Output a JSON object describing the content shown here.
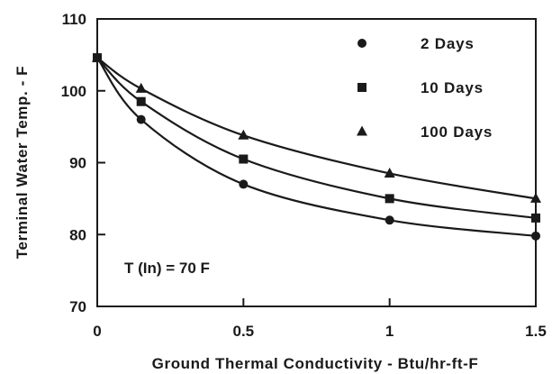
{
  "chart_data": {
    "type": "line",
    "xlabel": "Ground Thermal Conductivity - Btu/hr-ft-F",
    "ylabel": "Terminal Water Temp. - F",
    "xlim": [
      0,
      1.5
    ],
    "ylim": [
      70,
      110
    ],
    "x_ticks": [
      0,
      0.5,
      1,
      1.5
    ],
    "x_tick_labels": [
      "0",
      "0.5",
      "1",
      "1.5"
    ],
    "y_ticks": [
      70,
      80,
      90,
      100,
      110
    ],
    "y_tick_labels": [
      "70",
      "80",
      "90",
      "100",
      "110"
    ],
    "grid": false,
    "legend_position": "top-right",
    "annotation": "T (In) = 70 F",
    "series": [
      {
        "name": "2 Days",
        "marker": "circle",
        "x": [
          0,
          0.15,
          0.5,
          1,
          1.5
        ],
        "y": [
          104.6,
          96.0,
          87.0,
          82.0,
          79.8
        ]
      },
      {
        "name": "10 Days",
        "marker": "square",
        "x": [
          0,
          0.15,
          0.5,
          1,
          1.5
        ],
        "y": [
          104.6,
          98.5,
          90.5,
          85.0,
          82.3
        ]
      },
      {
        "name": "100 Days",
        "marker": "triangle",
        "x": [
          0,
          0.15,
          0.5,
          1,
          1.5
        ],
        "y": [
          104.6,
          100.3,
          93.8,
          88.5,
          85.0
        ]
      }
    ]
  }
}
